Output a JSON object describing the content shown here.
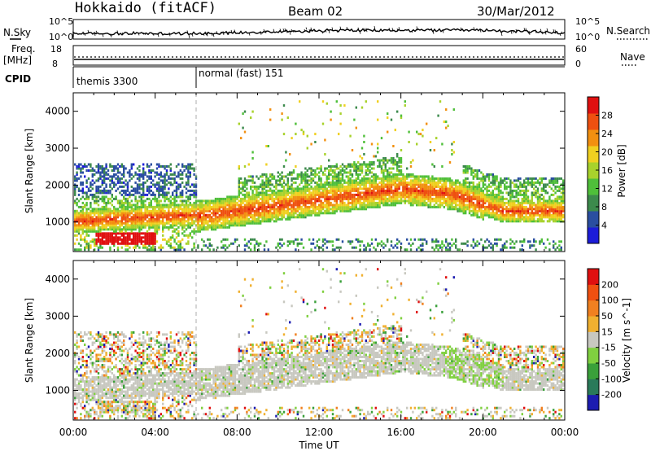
{
  "header": {
    "station": "Hokkaido (fitACF)",
    "beam": "Beam 02",
    "date": "30/Mar/2012"
  },
  "chart_data": [
    {
      "type": "line",
      "name": "noise-panel",
      "left_label": "N.Sky",
      "right_label": "N.Search",
      "left_ticks": [
        "10^5",
        "10^0"
      ],
      "right_ticks": [
        "10^5",
        "10^0"
      ]
    },
    {
      "type": "line",
      "name": "freq-nave-panel",
      "left_label": "Freq.",
      "left_unit": "[MHz]",
      "right_label": "Nave",
      "left_ticks": [
        "18",
        "8"
      ],
      "right_ticks": [
        "60",
        "0"
      ]
    },
    {
      "type": "table",
      "name": "cpid-panel",
      "label": "CPID",
      "modes": [
        {
          "text": "themis 3300",
          "start_hour": 0
        },
        {
          "text": "normal (fast) 151",
          "start_hour": 6
        }
      ]
    },
    {
      "type": "heatmap",
      "name": "power-panel",
      "ylabel": "Slant Range [km]",
      "yticks": [
        1000,
        2000,
        3000,
        4000
      ],
      "ylim": [
        200,
        4500
      ],
      "xlim_hours": [
        0,
        24
      ],
      "colorbar_label": "Power [dB]",
      "colorbar_ticks": [
        "28",
        "24",
        "20",
        "16",
        "12",
        "8",
        "4"
      ],
      "colorbar_range": [
        0,
        32
      ],
      "colors": [
        "#1c1cd8",
        "#2a4ea0",
        "#3c8a4c",
        "#4fbf3a",
        "#a8d22c",
        "#f0d020",
        "#f29010",
        "#ee5010",
        "#e01010"
      ]
    },
    {
      "type": "heatmap",
      "name": "velocity-panel",
      "ylabel": "Slant Range [km]",
      "yticks": [
        1000,
        2000,
        3000,
        4000
      ],
      "ylim": [
        200,
        4500
      ],
      "xlim_hours": [
        0,
        24
      ],
      "xlabel": "Time UT",
      "xticks": [
        "00:00",
        "04:00",
        "08:00",
        "12:00",
        "16:00",
        "20:00",
        "00:00"
      ],
      "colorbar_label": "Velocity [m s^-1]",
      "colorbar_ticks": [
        "200",
        "100",
        "50",
        "15",
        "-15",
        "-50",
        "-100",
        "-200"
      ],
      "colors": [
        "#1c1cb0",
        "#2a7a5a",
        "#3aa03a",
        "#80d040",
        "#c8c8c0",
        "#f0b030",
        "#f08020",
        "#f05010",
        "#e01010"
      ]
    }
  ]
}
